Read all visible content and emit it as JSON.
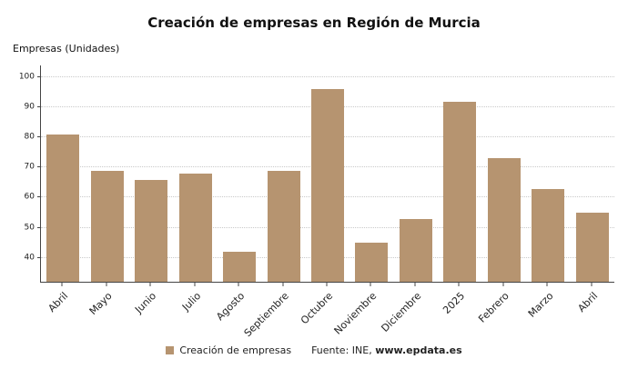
{
  "title": "Creación de empresas en Región de Murcia",
  "y_axis_title": "Empresas (Unidades)",
  "legend": {
    "label": "Creación de empresas",
    "color": "#b69470"
  },
  "source": {
    "prefix": "Fuente: INE, ",
    "bold": "www.epdata.es"
  },
  "chart_data": {
    "type": "bar",
    "categories": [
      "Abril",
      "Mayo",
      "Junio",
      "Julio",
      "Agosto",
      "Septiembre",
      "Octubre",
      "Noviembre",
      "Diciembre",
      "2025",
      "Febrero",
      "Marzo",
      "Abril"
    ],
    "values": [
      81,
      69,
      66,
      68,
      42,
      69,
      96,
      45,
      53,
      92,
      73,
      63,
      55
    ],
    "title": "Creación de empresas en Región de Murcia",
    "xlabel": "",
    "ylabel": "Empresas (Unidades)",
    "ylim": [
      32,
      104
    ],
    "yticks": [
      40,
      50,
      60,
      70,
      80,
      90,
      100
    ],
    "bar_color": "#b69470",
    "grid": "horizontal-dotted",
    "legend_position": "bottom"
  }
}
